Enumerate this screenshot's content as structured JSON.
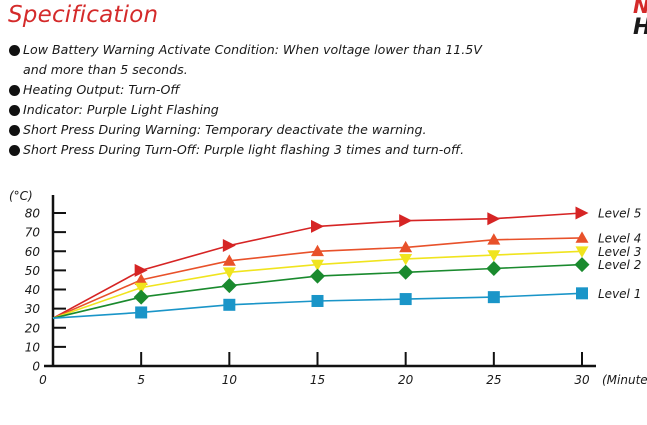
{
  "header": {
    "title": "Specification",
    "corner_red": "N",
    "corner_black": "H"
  },
  "spec": {
    "bullets": [
      [
        "Low Battery Warning Activate Condition: When voltage lower than 11.5V",
        "and more than 5 seconds."
      ],
      [
        "Heating Output: Turn-Off"
      ],
      [
        "Indicator: Purple Light Flashing"
      ],
      [
        "Short Press During Warning: Temporary deactivate the warning."
      ],
      [
        "Short Press During Turn-Off: Purple light flashing 3 times and turn-off."
      ]
    ]
  },
  "chart_data": {
    "type": "line",
    "y_unit_label": "(°C)",
    "x_unit_label": "(Minute",
    "x": [
      0,
      5,
      10,
      15,
      20,
      25,
      30
    ],
    "xlim": [
      0,
      30
    ],
    "ylim": [
      0,
      80
    ],
    "yticks": [
      0,
      10,
      20,
      30,
      40,
      50,
      60,
      70,
      80
    ],
    "grid": false,
    "legend": "right, inline end labels",
    "series": [
      {
        "name": "Level 5",
        "values": [
          25,
          50,
          63,
          73,
          76,
          77,
          80
        ],
        "color": "#d62424",
        "marker": "triangle-right"
      },
      {
        "name": "Level 4",
        "values": [
          25,
          45,
          55,
          60,
          62,
          66,
          67
        ],
        "color": "#e8512a",
        "marker": "triangle-up"
      },
      {
        "name": "Level 3",
        "values": [
          25,
          41,
          49,
          53,
          56,
          58,
          60
        ],
        "color": "#f0e41e",
        "marker": "triangle-down"
      },
      {
        "name": "Level 2",
        "values": [
          25,
          36,
          42,
          47,
          49,
          51,
          53
        ],
        "color": "#1a8a2e",
        "marker": "diamond"
      },
      {
        "name": "Level 1",
        "values": [
          25,
          28,
          32,
          34,
          35,
          36,
          38
        ],
        "color": "#1a95c8",
        "marker": "square"
      }
    ]
  }
}
